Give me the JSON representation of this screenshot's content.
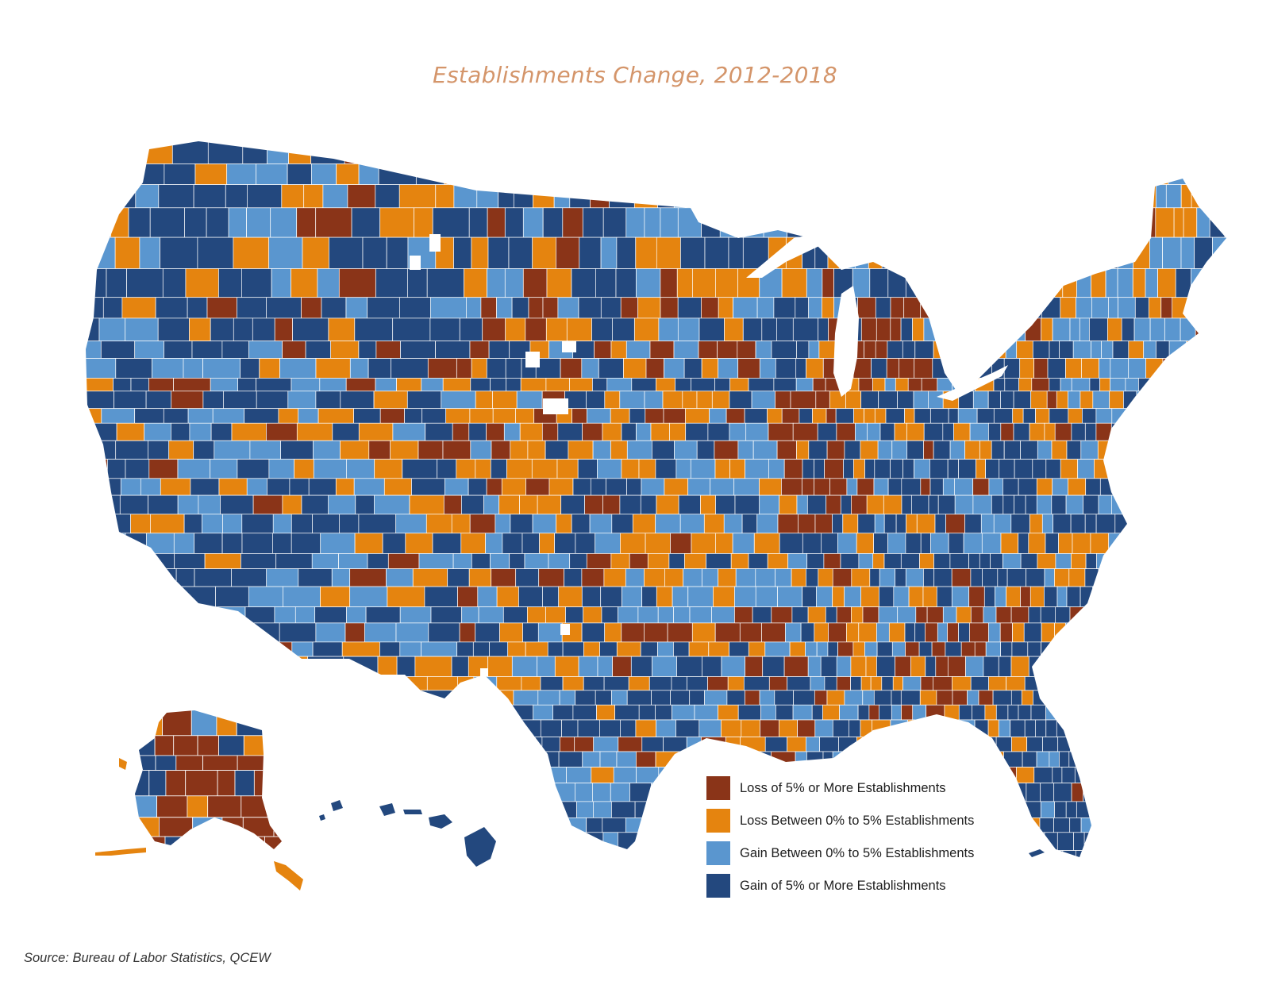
{
  "title": "Establishments Change, 2012-2018",
  "colors": {
    "loss_5_plus": "#8a3418",
    "loss_0_5": "#e5840f",
    "gain_0_5": "#5a96cf",
    "gain_5_plus": "#23487e",
    "title": "#d4956a"
  },
  "legend": [
    {
      "label": "Loss of 5% or More Establishments",
      "color": "#8a3418"
    },
    {
      "label": "Loss Between 0% to 5% Establishments",
      "color": "#e5840f"
    },
    {
      "label": "Gain Between 0% to 5% Establishments",
      "color": "#5a96cf"
    },
    {
      "label": "Gain of 5% or More Establishments",
      "color": "#23487e"
    }
  ],
  "source": "Source: Bureau of Labor Statistics, QCEW"
}
